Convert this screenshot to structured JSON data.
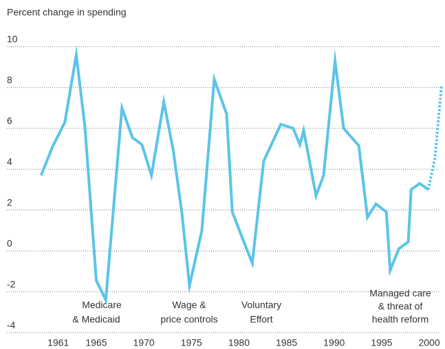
{
  "chart_data": {
    "type": "line",
    "y_label": "Percent change in spending",
    "series": [
      {
        "color": "#5bc4e8",
        "style": "solid",
        "x": [
          1959.2,
          1960.4,
          1961.7,
          1962.9,
          1963.8,
          1965,
          1966,
          1967.7,
          1968.8,
          1969.8,
          1970.8,
          1972.1,
          1973.1,
          1974,
          1974.8,
          1976.1,
          1977.4,
          1978.7,
          1979.3,
          1980.3,
          1981.4,
          1982.6,
          1984.4,
          1985.7,
          1986.4,
          1986.8,
          1988.1,
          1988.9,
          1990.1,
          1991,
          1992.6,
          1993.5,
          1994.4,
          1995.5,
          1995.9,
          1996.8,
          1997.8,
          1998.1,
          1999,
          1999.9
        ],
        "values": [
          3.7,
          5.1,
          6.3,
          9.6,
          6.1,
          -1.45,
          -2.4,
          7.0,
          5.55,
          5.2,
          3.7,
          7.3,
          4.9,
          1.85,
          -1.7,
          1.0,
          8.4,
          6.7,
          1.9,
          0.7,
          -0.6,
          4.4,
          6.2,
          6.0,
          5.2,
          5.9,
          2.7,
          3.7,
          9.3,
          6.0,
          5.15,
          1.65,
          2.3,
          1.9,
          -0.95,
          0.1,
          0.45,
          3.0,
          3.3,
          3.0
        ]
      },
      {
        "color": "#5bc4e8",
        "style": "dashed",
        "x": [
          1999.9,
          2000.6,
          2001.3
        ],
        "values": [
          3.0,
          4.55,
          8.1
        ]
      }
    ],
    "xlim": [
      1958.4,
      2001.5
    ],
    "xticks": [
      1961,
      1965,
      1970,
      1975,
      1980,
      1985,
      1990,
      1995,
      2000
    ],
    "ylim": [
      -4.6,
      10.5
    ],
    "yticks": [
      -4,
      -2,
      0,
      2,
      4,
      6,
      8,
      10
    ],
    "grid": true,
    "annotations": [
      [
        "Medicare",
        "& Medicaid"
      ],
      [
        "Wage &",
        "price controls"
      ],
      [
        "Voluntary",
        "Effort"
      ],
      [
        "Managed care",
        "& threat of",
        "health reform"
      ]
    ]
  }
}
